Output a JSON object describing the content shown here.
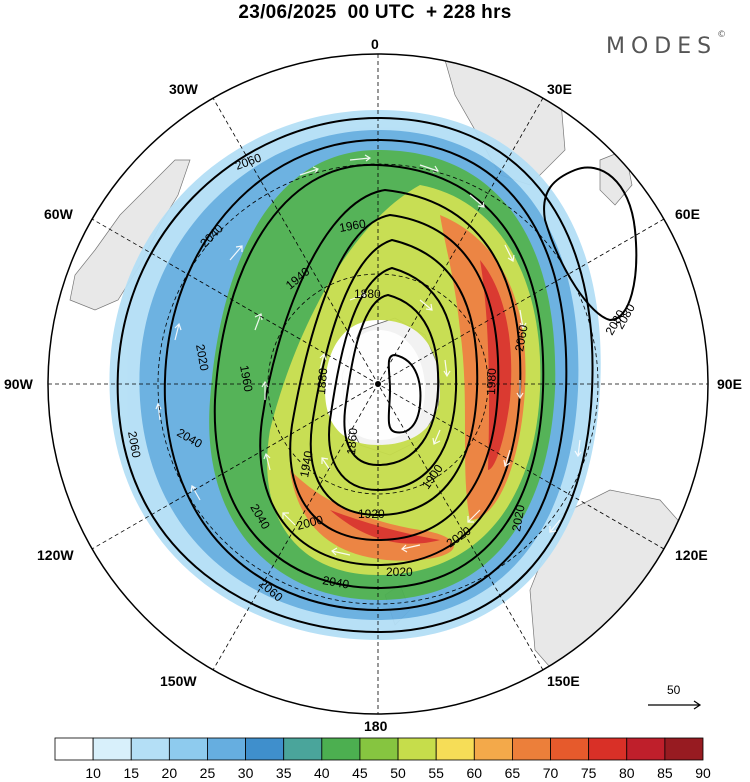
{
  "header": {
    "title": "23/06/2025  00 UTC  + 228 hrs",
    "brand": "MODES",
    "brand_mark": "©"
  },
  "map": {
    "projection": "south-polar-stereographic",
    "longitude_labels": {
      "lon_0": "0",
      "lon_30e": "30E",
      "lon_60e": "60E",
      "lon_90e": "90E",
      "lon_120e": "120E",
      "lon_150e": "150E",
      "lon_180": "180",
      "lon_150w": "150W",
      "lon_120w": "120W",
      "lon_90w": "90W",
      "lon_60w": "60W",
      "lon_30w": "30W"
    },
    "contour_labels": [
      "2060",
      "2040",
      "1960",
      "1940",
      "1880",
      "2020",
      "1980",
      "1920",
      "1900",
      "2060",
      "2080",
      "2060",
      "2040",
      "2020",
      "1960",
      "1880",
      "1860",
      "1940",
      "2000",
      "2020",
      "2040",
      "2040",
      "2060",
      "2020",
      "2080"
    ],
    "colors": {
      "land": "#e8e8e8",
      "contour": "#000000",
      "wind_vectors": "#ffffff"
    }
  },
  "reference_vector": {
    "label": "50"
  },
  "colorbar": {
    "ticks": [
      "10",
      "15",
      "20",
      "25",
      "30",
      "35",
      "40",
      "45",
      "50",
      "55",
      "60",
      "65",
      "70",
      "75",
      "80",
      "85",
      "90"
    ],
    "colors": [
      "#ffffff",
      "#d8f0fb",
      "#b4dff6",
      "#8ecbee",
      "#66aee0",
      "#3f8fcc",
      "#4aa59b",
      "#4caf50",
      "#86c540",
      "#c6dd4b",
      "#f6dd57",
      "#f3a94a",
      "#ec7f3a",
      "#e65a2c",
      "#d93027",
      "#bf1f2b",
      "#971b21"
    ]
  }
}
